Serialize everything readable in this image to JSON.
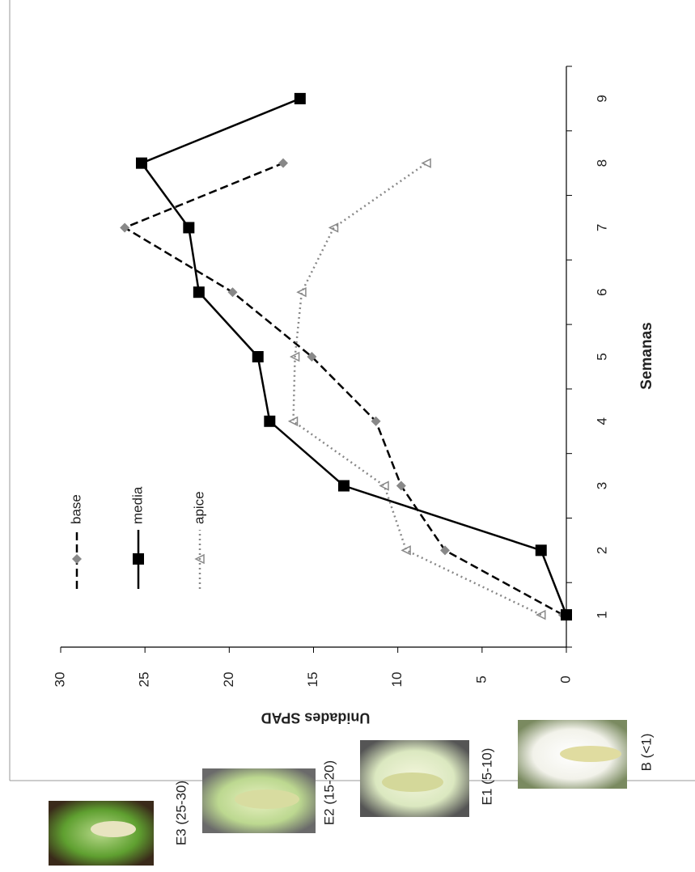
{
  "chart_data": {
    "type": "line",
    "x_label": "Semanas",
    "y_label": "Unidades SPAD",
    "categories": [
      "1",
      "2",
      "3",
      "4",
      "5",
      "6",
      "7",
      "8",
      "9"
    ],
    "ylim": [
      0,
      30
    ],
    "yticks": [
      0,
      5,
      10,
      15,
      20,
      25,
      30
    ],
    "series": [
      {
        "name": "base",
        "color": "#888888",
        "style": "dashed",
        "marker": "diamond",
        "values": [
          0.2,
          7.2,
          9.8,
          11.3,
          15.1,
          19.8,
          26.2,
          16.8,
          null
        ]
      },
      {
        "name": "media",
        "color": "#000000",
        "style": "solid",
        "marker": "square",
        "values": [
          0,
          1.5,
          13.2,
          17.6,
          18.3,
          21.8,
          22.4,
          25.2,
          15.8
        ]
      },
      {
        "name": "apice",
        "color": "#888888",
        "style": "dotted",
        "marker": "triangle",
        "values": [
          1.5,
          9.5,
          10.8,
          16.2,
          16.1,
          15.7,
          13.8,
          8.3,
          null
        ]
      }
    ]
  },
  "images": [
    {
      "label": "E3 (25-30)"
    },
    {
      "label": "E2 (15-20)"
    },
    {
      "label": "E1 (5-10)"
    },
    {
      "label": "B (<1)"
    }
  ]
}
